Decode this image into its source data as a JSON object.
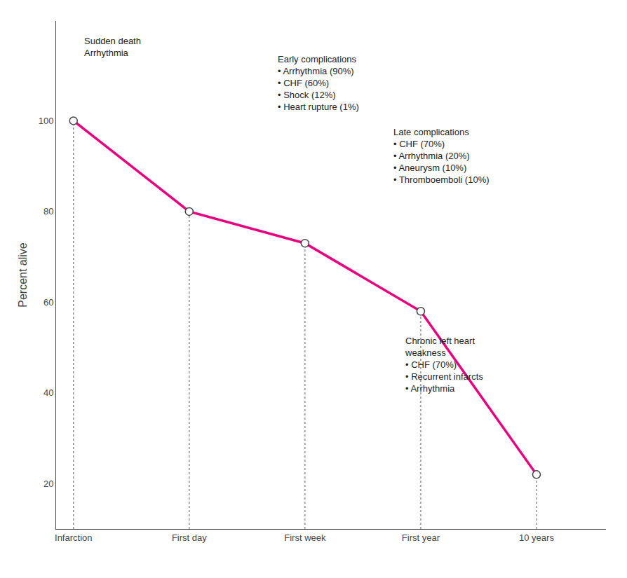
{
  "chart_data": {
    "type": "line",
    "x": [
      0,
      1,
      2,
      3,
      4
    ],
    "values": [
      100,
      80,
      73,
      58,
      22
    ],
    "color": "#e8007f",
    "marker": "circle",
    "y_label": "Percent alive",
    "xlim": [
      -0.15,
      4.6
    ],
    "xticks": [
      {
        "value": 0,
        "label": "Infarction"
      },
      {
        "value": 1,
        "label": "First day"
      },
      {
        "value": 2,
        "label": "First week"
      },
      {
        "value": 3,
        "label": "First year"
      },
      {
        "value": 4,
        "label": "10 years"
      }
    ],
    "ylim": [
      10,
      122
    ],
    "yticks": [
      20,
      40,
      60,
      80,
      100
    ],
    "grid": false,
    "annotations": [
      {
        "text": "Sudden death\nArrhythmia",
        "x": 0.08,
        "y": 119
      },
      {
        "text": "Early complications\n• Arrhythmia (90%)\n• CHF (60%)\n• Shock (12%)\n• Heart rupture (1%)",
        "x": 1.75,
        "y": 115
      },
      {
        "text": "Late complications\n• CHF (70%)\n• Arrhythmia (20%)\n• Aneurysm (10%)\n• Thromboemboli (10%)",
        "x": 2.75,
        "y": 99
      },
      {
        "text": "Chronic left heart\nweakness\n• CHF (70%)\n• Recurrent infarcts\n• Arrhythmia",
        "x": 2.85,
        "y": 53
      }
    ]
  }
}
